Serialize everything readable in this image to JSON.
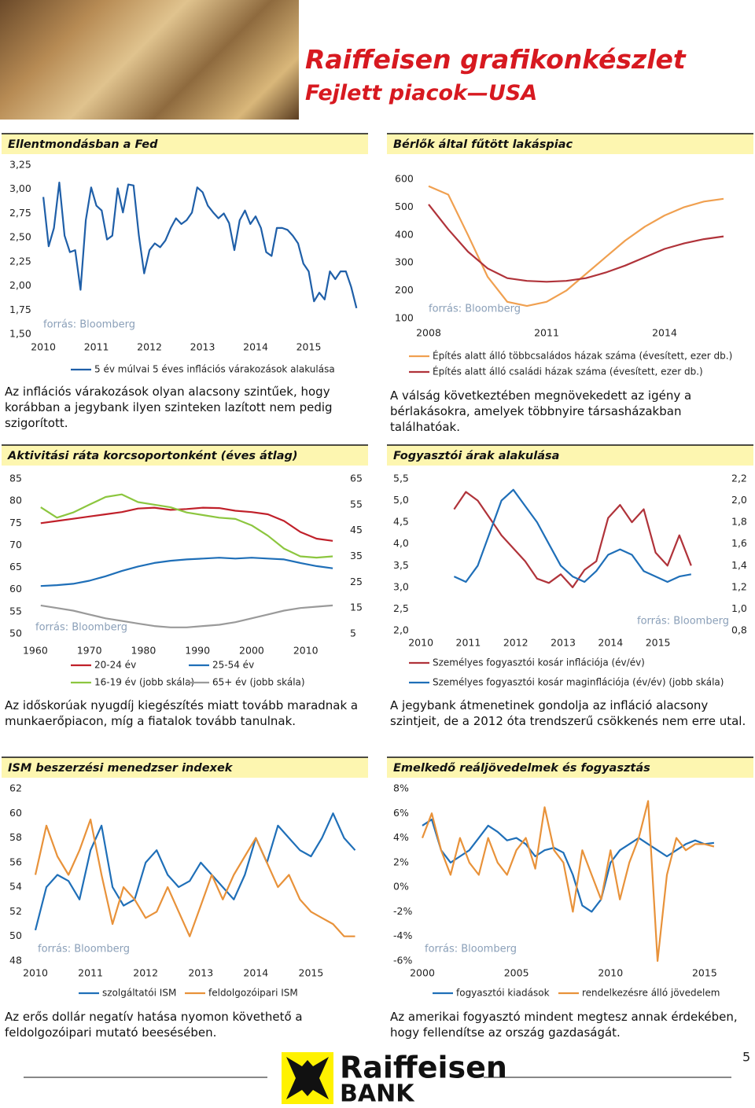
{
  "header": {
    "title": "Raiffeisen grafikonkészlet",
    "subtitle": "Fejlett piacok—USA"
  },
  "footer": {
    "brand": "Raiffeisen",
    "bank": "BANK",
    "page_number": 5
  },
  "chart_data": [
    {
      "type": "line",
      "title": "Ellentmondásban a Fed",
      "source": "forrás: Bloomberg",
      "caption": "Az inflációs várakozások olyan alacsony szintűek, hogy korábban a jegybank ilyen szinteken lazított nem pedig szigorított.",
      "x": [
        2010,
        2010.1,
        2010.2,
        2010.3,
        2010.4,
        2010.5,
        2010.6,
        2010.7,
        2010.8,
        2010.9,
        2011,
        2011.1,
        2011.2,
        2011.3,
        2011.4,
        2011.5,
        2011.6,
        2011.7,
        2011.8,
        2011.9,
        2012,
        2012.1,
        2012.2,
        2012.3,
        2012.4,
        2012.5,
        2012.6,
        2012.7,
        2012.8,
        2012.9,
        2013,
        2013.1,
        2013.2,
        2013.3,
        2013.4,
        2013.5,
        2013.6,
        2013.7,
        2013.8,
        2013.9,
        2014,
        2014.1,
        2014.2,
        2014.3,
        2014.4,
        2014.5,
        2014.6,
        2014.7,
        2014.8,
        2014.9,
        2015,
        2015.1,
        2015.2,
        2015.3,
        2015.4,
        2015.5,
        2015.6,
        2015.7,
        2015.8,
        2015.9
      ],
      "xlim": [
        2009.85,
        2016
      ],
      "xticks": [
        2010,
        2011,
        2012,
        2013,
        2014,
        2015
      ],
      "ylim": [
        1.5,
        3.25
      ],
      "yticks": [
        {
          "value": 1.5,
          "label": "1,50"
        },
        {
          "value": 1.75,
          "label": "1,75"
        },
        {
          "value": 2,
          "label": "2,00"
        },
        {
          "value": 2.25,
          "label": "2,25"
        },
        {
          "value": 2.5,
          "label": "2,50"
        },
        {
          "value": 2.75,
          "label": "2,75"
        },
        {
          "value": 3,
          "label": "3,00"
        },
        {
          "value": 3.25,
          "label": "3,25"
        }
      ],
      "series": [
        {
          "name": "5 év múlvai 5 éves inflációs várakozások alakulása",
          "color": "#1f5fa8",
          "values": [
            2.92,
            2.41,
            2.6,
            3.07,
            2.52,
            2.35,
            2.37,
            1.96,
            2.68,
            3.02,
            2.83,
            2.78,
            2.48,
            2.52,
            3.01,
            2.76,
            3.05,
            3.04,
            2.52,
            2.13,
            2.37,
            2.44,
            2.4,
            2.47,
            2.6,
            2.7,
            2.64,
            2.68,
            2.76,
            3.02,
            2.97,
            2.83,
            2.76,
            2.7,
            2.75,
            2.65,
            2.37,
            2.68,
            2.78,
            2.64,
            2.72,
            2.6,
            2.35,
            2.31,
            2.6,
            2.6,
            2.58,
            2.52,
            2.44,
            2.23,
            2.15,
            1.84,
            1.93,
            1.86,
            2.15,
            2.07,
            2.15,
            2.15,
            1.99,
            1.77
          ]
        }
      ]
    },
    {
      "type": "line",
      "title": "Bérlők által fűtött lakáspiac",
      "source": "forrás: Bloomberg",
      "caption": "A válság következtében megnövekedett az igény a bérlakásokra, amelyek többnyire társasházakban találhatóak.",
      "x": [
        2008,
        2008.5,
        2009,
        2009.5,
        2010,
        2010.5,
        2011,
        2011.5,
        2012,
        2012.5,
        2013,
        2013.5,
        2014,
        2014.5,
        2015,
        2015.5
      ],
      "xlim": [
        2007.9,
        2016
      ],
      "xticks": [
        2008,
        2011,
        2014
      ],
      "ylim": [
        100,
        600
      ],
      "yticks": [
        100,
        200,
        300,
        400,
        500,
        600
      ],
      "series": [
        {
          "name": "Építés alatt álló többcsaládos házak száma (évesített, ezer db.)",
          "color": "#f0a050",
          "values": [
            575,
            545,
            400,
            250,
            160,
            145,
            160,
            200,
            260,
            320,
            380,
            430,
            470,
            500,
            520,
            530
          ]
        },
        {
          "name": "Építés alatt álló családi házak száma (évesített, ezer db.)",
          "color": "#b0333a",
          "values": [
            510,
            420,
            340,
            280,
            245,
            235,
            232,
            235,
            245,
            265,
            290,
            320,
            350,
            370,
            385,
            395
          ]
        }
      ]
    },
    {
      "type": "line",
      "title": "Aktivitási ráta korcsoportonként (éves átlag)",
      "source": "forrás: Bloomberg",
      "caption": "Az időskorúak nyugdíj kiegészítés miatt tovább maradnak a munkaerőpiacon, míg a fiatalok tovább tanulnak.",
      "x": [
        1961,
        1964,
        1967,
        1970,
        1973,
        1976,
        1979,
        1982,
        1985,
        1988,
        1991,
        1994,
        1997,
        2000,
        2003,
        2006,
        2009,
        2012,
        2015
      ],
      "xlim": [
        1959,
        2016
      ],
      "xticks": [
        1960,
        1970,
        1980,
        1990,
        2000,
        2010
      ],
      "ylim": [
        50,
        85
      ],
      "yticks": [
        50,
        55,
        60,
        65,
        70,
        75,
        80,
        85
      ],
      "y2lim": [
        5,
        65
      ],
      "y2ticks": [
        5,
        15,
        25,
        35,
        45,
        55,
        65
      ],
      "series": [
        {
          "name": "20-24 év",
          "color": "#c0202a",
          "values": [
            75,
            75.5,
            76,
            76.5,
            77,
            77.5,
            78.3,
            78.5,
            78,
            78.2,
            78.5,
            78.4,
            77.8,
            77.5,
            77,
            75.5,
            73,
            71.5,
            71
          ]
        },
        {
          "name": "25-54 év",
          "color": "#1f6fb8",
          "values": [
            60.8,
            61,
            61.3,
            62,
            63,
            64.2,
            65.2,
            66,
            66.5,
            66.8,
            67,
            67.2,
            67,
            67.2,
            67,
            66.8,
            66,
            65.3,
            64.8
          ]
        },
        {
          "name": "16-19 év (jobb skála)",
          "color": "#8cc63f",
          "axis": "y2",
          "values": [
            54,
            50,
            52,
            55,
            58,
            59,
            56,
            55,
            54,
            52,
            51,
            50,
            49.5,
            47,
            43,
            38,
            35,
            34.5,
            35
          ]
        },
        {
          "name": "65+ év (jobb skála)",
          "color": "#9a9a9a",
          "axis": "y2",
          "values": [
            16,
            15,
            14,
            12.5,
            11,
            10,
            9,
            8,
            7.5,
            7.5,
            8,
            8.5,
            9.5,
            11,
            12.5,
            14,
            15,
            15.5,
            16
          ]
        }
      ]
    },
    {
      "type": "line",
      "title": "Fogyasztói árak alakulása",
      "source": "forrás: Bloomberg",
      "caption": "A jegybank átmenetinek gondolja az infláció alacsony szintjeit, de a 2012 óta trendszerű csökkenés nem erre utal.",
      "x": [
        2010.7,
        2010.95,
        2011.2,
        2011.45,
        2011.7,
        2011.95,
        2012.2,
        2012.45,
        2012.7,
        2012.95,
        2013.2,
        2013.45,
        2013.7,
        2013.95,
        2014.2,
        2014.45,
        2014.7,
        2014.95,
        2015.2,
        2015.45,
        2015.7
      ],
      "xlim": [
        2009.5,
        2016.3
      ],
      "xticks": [
        2010,
        2011,
        2012,
        2013,
        2014,
        2015
      ],
      "ylim": [
        2,
        5.5
      ],
      "yticks": [
        {
          "value": 2,
          "label": "2,0"
        },
        {
          "value": 2.5,
          "label": "2,5"
        },
        {
          "value": 3,
          "label": "3,0"
        },
        {
          "value": 3.5,
          "label": "3,5"
        },
        {
          "value": 4,
          "label": "4,0"
        },
        {
          "value": 4.5,
          "label": "4,5"
        },
        {
          "value": 5,
          "label": "5,0"
        },
        {
          "value": 5.5,
          "label": "5,5"
        }
      ],
      "y2lim": [
        0.8,
        2.2
      ],
      "y2ticks": [
        {
          "value": 0.8,
          "label": "0,8"
        },
        {
          "value": 1,
          "label": "1,0"
        },
        {
          "value": 1.2,
          "label": "1,2"
        },
        {
          "value": 1.4,
          "label": "1,4"
        },
        {
          "value": 1.6,
          "label": "1,6"
        },
        {
          "value": 1.8,
          "label": "1,8"
        },
        {
          "value": 2,
          "label": "2,0"
        },
        {
          "value": 2.2,
          "label": "2,2"
        }
      ],
      "series": [
        {
          "name": "Személyes fogyasztói kosár inflációja (év/év)",
          "color": "#b0333a",
          "values": [
            4.8,
            5.2,
            5.0,
            4.6,
            4.2,
            3.9,
            3.6,
            3.2,
            3.1,
            3.3,
            3.0,
            3.4,
            3.6,
            4.6,
            4.9,
            4.5,
            4.8,
            3.8,
            3.5,
            4.2,
            3.5
          ]
        },
        {
          "name": "Személyes fogyasztói kosár maginflációja (év/év) (jobb skála)",
          "color": "#1f6fb8",
          "axis": "y2",
          "values": [
            1.3,
            1.25,
            1.4,
            1.7,
            2.0,
            2.1,
            1.95,
            1.8,
            1.6,
            1.4,
            1.3,
            1.25,
            1.35,
            1.5,
            1.55,
            1.5,
            1.35,
            1.3,
            1.25,
            1.3,
            1.32
          ]
        }
      ]
    },
    {
      "type": "line",
      "title": "ISM beszerzési menedzser indexek",
      "source": "forrás: Bloomberg",
      "caption": "Az erős dollár negatív hatása nyomon követhető a feldolgozóipari mutató beesésében.",
      "x": [
        2010,
        2010.2,
        2010.4,
        2010.6,
        2010.8,
        2011,
        2011.2,
        2011.4,
        2011.6,
        2011.8,
        2012,
        2012.2,
        2012.4,
        2012.6,
        2012.8,
        2013,
        2013.2,
        2013.4,
        2013.6,
        2013.8,
        2014,
        2014.2,
        2014.4,
        2014.6,
        2014.8,
        2015,
        2015.2,
        2015.4,
        2015.6,
        2015.8
      ],
      "xlim": [
        2010,
        2015.85
      ],
      "xticks": [
        2010,
        2011,
        2012,
        2013,
        2014,
        2015
      ],
      "ylim": [
        48,
        62
      ],
      "yticks": [
        48,
        50,
        52,
        54,
        56,
        58,
        60,
        62
      ],
      "series": [
        {
          "name": "szolgáltatói ISM",
          "color": "#1f6fb8",
          "values": [
            50.5,
            54,
            55,
            54.5,
            53,
            57,
            59,
            54,
            52.5,
            53,
            56,
            57,
            55,
            54,
            54.5,
            56,
            55,
            54,
            53,
            55,
            58,
            56,
            59,
            58,
            57,
            56.5,
            58,
            60,
            58,
            57
          ]
        },
        {
          "name": "feldolgozóipari ISM",
          "color": "#e8923a",
          "values": [
            55,
            59,
            56.5,
            55,
            57,
            59.5,
            55,
            51,
            54,
            53,
            51.5,
            52,
            54,
            52,
            50,
            52.5,
            55,
            53,
            55,
            56.5,
            58,
            56,
            54,
            55,
            53,
            52,
            51.5,
            51,
            50,
            50
          ]
        }
      ]
    },
    {
      "type": "line",
      "title": "Emelkedő reáljövedelmek és fogyasztás",
      "source": "forrás: Bloomberg",
      "caption": "Az amerikai fogyasztó mindent megtesz annak érdekében, hogy fellendítse az ország gazdaságát.",
      "x": [
        2000,
        2000.5,
        2001,
        2001.5,
        2002,
        2002.5,
        2003,
        2003.5,
        2004,
        2004.5,
        2005,
        2005.5,
        2006,
        2006.5,
        2007,
        2007.5,
        2008,
        2008.5,
        2009,
        2009.5,
        2010,
        2010.5,
        2011,
        2011.5,
        2012,
        2012.5,
        2013,
        2013.5,
        2014,
        2014.5,
        2015,
        2015.5
      ],
      "xlim": [
        2000,
        2016.3
      ],
      "xticks": [
        2000,
        2005,
        2010,
        2015
      ],
      "ylim": [
        -6,
        8
      ],
      "yticks": [
        {
          "value": -6,
          "label": "-6%"
        },
        {
          "value": -4,
          "label": "-4%"
        },
        {
          "value": -2,
          "label": "-2%"
        },
        {
          "value": 0,
          "label": "0%"
        },
        {
          "value": 2,
          "label": "2%"
        },
        {
          "value": 4,
          "label": "4%"
        },
        {
          "value": 6,
          "label": "6%"
        },
        {
          "value": 8,
          "label": "8%"
        }
      ],
      "series": [
        {
          "name": "fogyasztói kiadások",
          "color": "#1f6fb8",
          "values": [
            5,
            5.5,
            3,
            2,
            2.5,
            3,
            4,
            5,
            4.5,
            3.8,
            4,
            3.5,
            2.5,
            3,
            3.2,
            2.8,
            1,
            -1.5,
            -2,
            -1,
            2,
            3,
            3.5,
            4,
            3.5,
            3,
            2.5,
            3,
            3.5,
            3.8,
            3.5,
            3.6
          ]
        },
        {
          "name": "rendelkezésre álló jövedelem",
          "color": "#e8923a",
          "values": [
            4,
            6,
            3,
            1,
            4,
            2,
            1,
            4,
            2,
            1,
            3,
            4,
            1.5,
            6.5,
            3,
            2,
            -2,
            3,
            1,
            -1,
            3,
            -1,
            2,
            4,
            7,
            -6,
            1,
            4,
            3,
            3.5,
            3.5,
            3.3
          ]
        }
      ]
    }
  ]
}
